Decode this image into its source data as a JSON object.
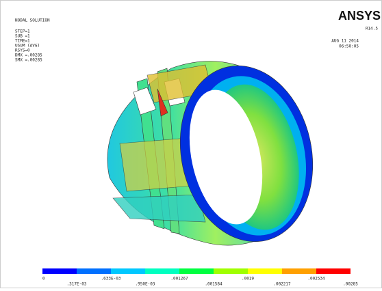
{
  "header": {
    "title": "NODAL SOLUTION",
    "lines": [
      "STEP=1",
      "SUB =1",
      "TIME=1",
      "USUM      (AVG)",
      "RSYS=0",
      "DMX =.00285",
      "SMX =.00285"
    ]
  },
  "brand": {
    "name": "ANSYS",
    "release": "R14.5",
    "date": "AUG 11 2014",
    "time": "06:50:05"
  },
  "legend": {
    "colors": [
      "#0000ff",
      "#0070ff",
      "#00c8ff",
      "#00ffc0",
      "#00ff40",
      "#a0ff00",
      "#ffff00",
      "#ffa000",
      "#ff0000"
    ],
    "labels": [
      "0",
      ".317E-03",
      ".633E-03",
      ".950E-03",
      ".001267",
      ".001584",
      ".0019",
      ".002217",
      ".002534",
      ".00285"
    ]
  }
}
